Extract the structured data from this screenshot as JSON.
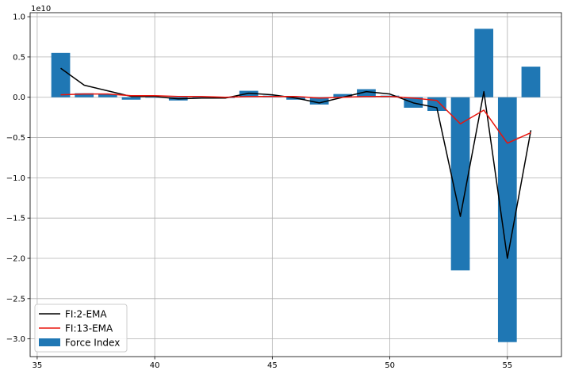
{
  "chart_data": {
    "type": "bar",
    "title": "",
    "xlabel": "",
    "ylabel": "",
    "y_multiplier_label": "1e10",
    "y_scale": 10000000000,
    "xlim": [
      34.7,
      57.3
    ],
    "ylim": [
      -3.22,
      1.05
    ],
    "x_ticks": [
      35,
      40,
      45,
      50,
      55
    ],
    "y_ticks": [
      -3.0,
      -2.5,
      -2.0,
      -1.5,
      -1.0,
      -0.5,
      0.0,
      0.5,
      1.0
    ],
    "y_tick_labels": [
      "−3.0",
      "−2.5",
      "−2.0",
      "−1.5",
      "−1.0",
      "−0.5",
      "0.0",
      "0.5",
      "1.0"
    ],
    "grid": true,
    "legend_position": "lower-left",
    "x": [
      36,
      37,
      38,
      39,
      40,
      41,
      42,
      43,
      44,
      45,
      46,
      47,
      48,
      49,
      50,
      51,
      52,
      53,
      54,
      55,
      56
    ],
    "series": [
      {
        "name": "Force Index",
        "kind": "bar",
        "color": "#1f77b4",
        "values": [
          0.55,
          0.05,
          0.04,
          -0.03,
          0.0,
          -0.04,
          0.0,
          -0.01,
          0.08,
          0.02,
          -0.03,
          -0.09,
          0.04,
          0.1,
          0.02,
          -0.13,
          -0.17,
          -2.15,
          0.85,
          -3.04,
          0.38
        ]
      },
      {
        "name": "FI:2-EMA",
        "kind": "line",
        "color": "#000000",
        "values": [
          0.36,
          0.15,
          0.08,
          0.01,
          0.01,
          -0.02,
          -0.01,
          -0.01,
          0.05,
          0.03,
          -0.01,
          -0.07,
          0.0,
          0.07,
          0.04,
          -0.07,
          -0.13,
          -1.48,
          0.07,
          -2.0,
          -0.41
        ]
      },
      {
        "name": "FI:13-EMA",
        "kind": "line",
        "color": "#e8140c",
        "values": [
          0.03,
          0.04,
          0.04,
          0.02,
          0.02,
          0.01,
          0.01,
          0.0,
          0.01,
          0.01,
          0.01,
          -0.01,
          0.0,
          0.01,
          0.01,
          -0.01,
          -0.04,
          -0.33,
          -0.16,
          -0.57,
          -0.44
        ]
      }
    ]
  }
}
